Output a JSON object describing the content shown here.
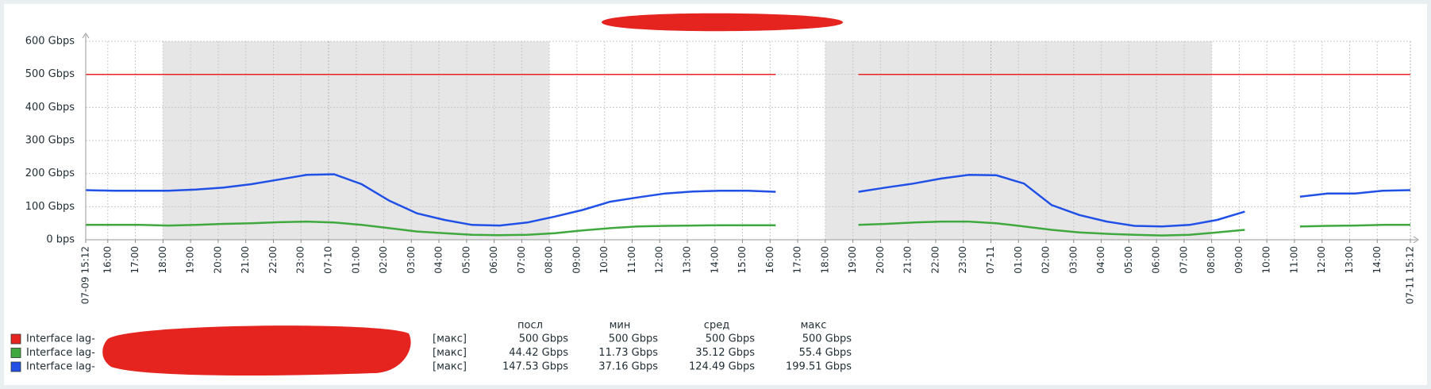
{
  "chart_data": {
    "type": "line",
    "xlim": [
      0,
      48
    ],
    "xticks": [
      {
        "value": 0,
        "label": "07-09 15:12"
      },
      {
        "value": 0.8,
        "label": "16:00"
      },
      {
        "value": 1.8,
        "label": "17:00"
      },
      {
        "value": 2.8,
        "label": "18:00"
      },
      {
        "value": 3.8,
        "label": "19:00"
      },
      {
        "value": 4.8,
        "label": "20:00"
      },
      {
        "value": 5.8,
        "label": "21:00"
      },
      {
        "value": 6.8,
        "label": "22:00"
      },
      {
        "value": 7.8,
        "label": "23:00"
      },
      {
        "value": 8.8,
        "label": "07-10"
      },
      {
        "value": 9.8,
        "label": "01:00"
      },
      {
        "value": 10.8,
        "label": "02:00"
      },
      {
        "value": 11.8,
        "label": "03:00"
      },
      {
        "value": 12.8,
        "label": "04:00"
      },
      {
        "value": 13.8,
        "label": "05:00"
      },
      {
        "value": 14.8,
        "label": "06:00"
      },
      {
        "value": 15.8,
        "label": "07:00"
      },
      {
        "value": 16.8,
        "label": "08:00"
      },
      {
        "value": 17.8,
        "label": "09:00"
      },
      {
        "value": 18.8,
        "label": "10:00"
      },
      {
        "value": 19.8,
        "label": "11:00"
      },
      {
        "value": 20.8,
        "label": "12:00"
      },
      {
        "value": 21.8,
        "label": "13:00"
      },
      {
        "value": 22.8,
        "label": "14:00"
      },
      {
        "value": 23.8,
        "label": "15:00"
      },
      {
        "value": 24.8,
        "label": "16:00"
      },
      {
        "value": 25.8,
        "label": "17:00"
      },
      {
        "value": 26.8,
        "label": "18:00"
      },
      {
        "value": 27.8,
        "label": "19:00"
      },
      {
        "value": 28.8,
        "label": "20:00"
      },
      {
        "value": 29.8,
        "label": "21:00"
      },
      {
        "value": 30.8,
        "label": "22:00"
      },
      {
        "value": 31.8,
        "label": "23:00"
      },
      {
        "value": 32.8,
        "label": "07-11"
      },
      {
        "value": 33.8,
        "label": "01:00"
      },
      {
        "value": 34.8,
        "label": "02:00"
      },
      {
        "value": 35.8,
        "label": "03:00"
      },
      {
        "value": 36.8,
        "label": "04:00"
      },
      {
        "value": 37.8,
        "label": "05:00"
      },
      {
        "value": 38.8,
        "label": "06:00"
      },
      {
        "value": 39.8,
        "label": "07:00"
      },
      {
        "value": 40.8,
        "label": "08:00"
      },
      {
        "value": 41.8,
        "label": "09:00"
      },
      {
        "value": 42.8,
        "label": "10:00"
      },
      {
        "value": 43.8,
        "label": "11:00"
      },
      {
        "value": 44.8,
        "label": "12:00"
      },
      {
        "value": 45.8,
        "label": "13:00"
      },
      {
        "value": 46.8,
        "label": "14:00"
      },
      {
        "value": 48,
        "label": "07-11 15:12"
      }
    ],
    "ylim": [
      0,
      600
    ],
    "yticks": [
      {
        "value": 0,
        "label": "0 bps"
      },
      {
        "value": 100,
        "label": "100 Gbps"
      },
      {
        "value": 200,
        "label": "200 Gbps"
      },
      {
        "value": 300,
        "label": "300 Gbps"
      },
      {
        "value": 400,
        "label": "400 Gbps"
      },
      {
        "value": 500,
        "label": "500 Gbps"
      },
      {
        "value": 600,
        "label": "600 Gbps"
      }
    ],
    "grid": true,
    "shaded": [
      [
        2.8,
        16.8
      ],
      [
        26.8,
        40.8
      ]
    ],
    "x": [
      0,
      1,
      2,
      3,
      4,
      5,
      6,
      7,
      8,
      9,
      10,
      11,
      12,
      13,
      14,
      15,
      16,
      17,
      18,
      19,
      20,
      21,
      22,
      23,
      24,
      25,
      26,
      27,
      28,
      29,
      30,
      31,
      32,
      33,
      34,
      35,
      36,
      37,
      38,
      39,
      40,
      41,
      42,
      43,
      44,
      45,
      46,
      47,
      48
    ],
    "legend_columns": [
      "посл",
      "мин",
      "сред",
      "макс"
    ],
    "series": [
      {
        "name": "Interface lag-",
        "color": "#e52420",
        "function": "[макс]",
        "stats": [
          "500 Gbps",
          "500 Gbps",
          "500 Gbps",
          "500 Gbps"
        ],
        "values": [
          500,
          500,
          500,
          500,
          500,
          500,
          500,
          500,
          500,
          500,
          500,
          500,
          500,
          500,
          500,
          500,
          500,
          500,
          500,
          500,
          500,
          500,
          500,
          500,
          500,
          500,
          null,
          null,
          500,
          500,
          500,
          500,
          500,
          500,
          500,
          500,
          500,
          500,
          500,
          500,
          500,
          500,
          500,
          500,
          500,
          500,
          500,
          500,
          500
        ]
      },
      {
        "name": "Interface lag-",
        "color": "#3fa93f",
        "function": "[макс]",
        "stats": [
          "44.42 Gbps",
          "11.73 Gbps",
          "35.12 Gbps",
          "55.4 Gbps"
        ],
        "values": [
          45,
          45,
          45,
          43,
          45,
          48,
          50,
          53,
          55,
          52,
          45,
          35,
          25,
          20,
          15,
          14,
          15,
          20,
          28,
          35,
          40,
          42,
          43,
          44,
          44,
          44,
          null,
          null,
          45,
          48,
          52,
          55,
          55,
          50,
          40,
          30,
          22,
          18,
          15,
          13,
          15,
          22,
          30,
          null,
          40,
          42,
          43,
          45,
          45
        ]
      },
      {
        "name": "Interface lag-",
        "color": "#2050e6",
        "function": "[макс]",
        "stats": [
          "147.53 Gbps",
          "37.16 Gbps",
          "124.49 Gbps",
          "199.51 Gbps"
        ],
        "values": [
          150,
          148,
          148,
          148,
          152,
          158,
          168,
          182,
          196,
          198,
          168,
          118,
          80,
          60,
          45,
          43,
          52,
          70,
          90,
          115,
          128,
          140,
          146,
          148,
          148,
          145,
          null,
          null,
          145,
          158,
          170,
          185,
          196,
          195,
          170,
          105,
          75,
          55,
          42,
          40,
          45,
          60,
          85,
          null,
          130,
          140,
          140,
          148,
          150
        ]
      }
    ]
  }
}
